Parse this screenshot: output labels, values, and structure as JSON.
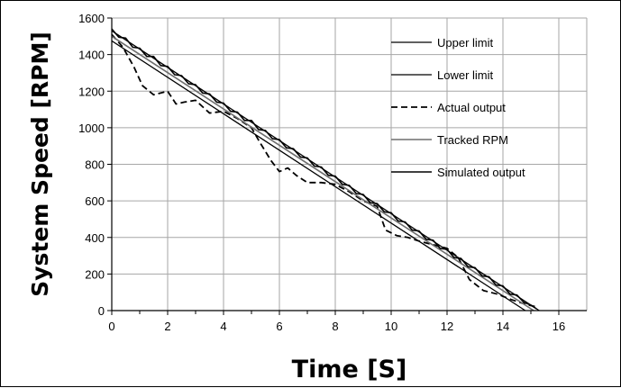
{
  "chart_data": {
    "type": "line",
    "title": "",
    "xlabel": "Time [S]",
    "ylabel": "System Speed [RPM]",
    "xlim": [
      0,
      17
    ],
    "ylim": [
      0,
      1600
    ],
    "xticks": [
      0,
      2,
      4,
      6,
      8,
      10,
      12,
      14,
      16
    ],
    "yticks": [
      0,
      200,
      400,
      600,
      800,
      1000,
      1200,
      1400,
      1600
    ],
    "grid": true,
    "legend_position": "top-right",
    "series": [
      {
        "name": "Upper limit",
        "color": "#000000",
        "style": "solid",
        "x": [
          0,
          15.3
        ],
        "y": [
          1530,
          0
        ]
      },
      {
        "name": "Lower limit",
        "color": "#000000",
        "style": "solid",
        "x": [
          0,
          14.8
        ],
        "y": [
          1475,
          0
        ]
      },
      {
        "name": "Actual output",
        "color": "#000000",
        "style": "dashed",
        "x": [
          0,
          0.4,
          0.8,
          1.1,
          1.5,
          2.0,
          2.3,
          2.6,
          3.0,
          3.5,
          4.0,
          4.5,
          5.0,
          5.3,
          5.7,
          6.0,
          6.3,
          6.6,
          7.0,
          7.5,
          8.0,
          8.5,
          9.0,
          9.5,
          9.8,
          10.2,
          10.6,
          11.0,
          11.5,
          12.0,
          12.4,
          12.8,
          13.3,
          13.8,
          14.3,
          14.8,
          15.2
        ],
        "y": [
          1510,
          1440,
          1330,
          1230,
          1180,
          1200,
          1130,
          1140,
          1150,
          1080,
          1090,
          1050,
          1000,
          920,
          820,
          760,
          780,
          740,
          700,
          700,
          690,
          650,
          600,
          570,
          440,
          410,
          400,
          380,
          360,
          340,
          290,
          170,
          110,
          90,
          60,
          35,
          20
        ]
      },
      {
        "name": "Tracked RPM",
        "color": "#6e6e6e",
        "style": "solid",
        "x": [
          0,
          15.1
        ],
        "y": [
          1500,
          0
        ]
      },
      {
        "name": "Simulated output",
        "color": "#000000",
        "style": "solid",
        "x": [
          0,
          0.25,
          0.5,
          0.75,
          1.0,
          1.25,
          1.5,
          1.75,
          2.0,
          2.25,
          2.5,
          2.75,
          3.0,
          3.25,
          3.5,
          3.75,
          4.0,
          4.25,
          4.5,
          4.75,
          5.0,
          5.25,
          5.5,
          5.75,
          6.0,
          6.25,
          6.5,
          6.75,
          7.0,
          7.25,
          7.5,
          7.75,
          8.0,
          8.25,
          8.5,
          8.75,
          9.0,
          9.25,
          9.5,
          9.75,
          10.0,
          10.25,
          10.5,
          10.75,
          11.0,
          11.25,
          11.5,
          11.75,
          12.0,
          12.25,
          12.5,
          12.75,
          13.0,
          13.25,
          13.5,
          13.75,
          14.0,
          14.25,
          14.5,
          14.75,
          15.0,
          15.2
        ],
        "y": [
          1540,
          1495,
          1490,
          1440,
          1435,
          1390,
          1390,
          1340,
          1335,
          1290,
          1285,
          1240,
          1235,
          1190,
          1185,
          1140,
          1135,
          1090,
          1085,
          1040,
          1040,
          990,
          985,
          940,
          935,
          890,
          885,
          840,
          835,
          790,
          785,
          740,
          735,
          690,
          685,
          640,
          635,
          590,
          585,
          540,
          535,
          490,
          485,
          440,
          435,
          390,
          385,
          340,
          335,
          290,
          285,
          240,
          235,
          190,
          185,
          140,
          135,
          90,
          85,
          45,
          30,
          10
        ]
      }
    ]
  }
}
